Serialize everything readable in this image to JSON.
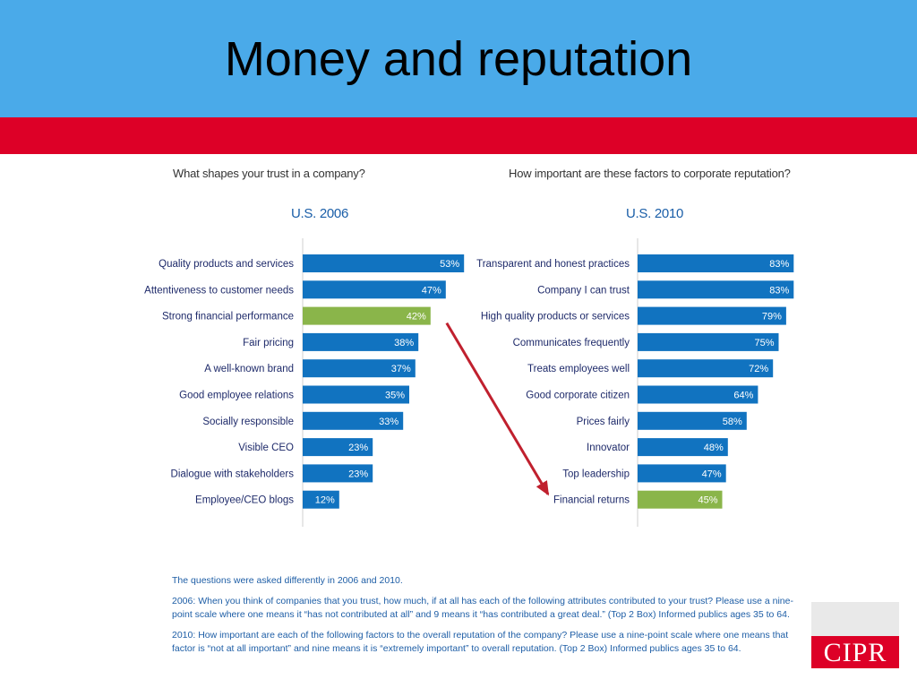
{
  "title": "Money and reputation",
  "left": {
    "question": "What shapes your trust in a company?",
    "year_label": "U.S. 2006"
  },
  "right": {
    "question": "How important are these factors to corporate reputation?",
    "year_label": "U.S. 2010"
  },
  "chart_data": [
    {
      "type": "bar",
      "orientation": "horizontal",
      "title": "U.S. 2006",
      "categories": [
        "Quality products and services",
        "Attentiveness to customer needs",
        "Strong financial performance",
        "Fair pricing",
        "A well-known brand",
        "Good employee relations",
        "Socially responsible",
        "Visible CEO",
        "Dialogue with stakeholders",
        "Employee/CEO blogs"
      ],
      "values": [
        53,
        47,
        42,
        38,
        37,
        35,
        33,
        23,
        23,
        12
      ],
      "labels": [
        "53%",
        "47%",
        "42%",
        "38%",
        "37%",
        "35%",
        "33%",
        "23%",
        "23%",
        "12%"
      ],
      "highlight_index": 2,
      "xlim": [
        0,
        100
      ]
    },
    {
      "type": "bar",
      "orientation": "horizontal",
      "title": "U.S. 2010",
      "categories": [
        "Transparent and honest practices",
        "Company I can trust",
        "High quality products or services",
        "Communicates frequently",
        "Treats employees well",
        "Good corporate citizen",
        "Prices fairly",
        "Innovator",
        "Top leadership",
        "Financial returns"
      ],
      "values": [
        83,
        83,
        79,
        75,
        72,
        64,
        58,
        48,
        47,
        45
      ],
      "labels": [
        "83%",
        "83%",
        "79%",
        "75%",
        "72%",
        "64%",
        "58%",
        "48%",
        "47%",
        "45%"
      ],
      "highlight_index": 9,
      "xlim": [
        0,
        100
      ]
    }
  ],
  "colors": {
    "bar": "#1173c0",
    "highlight": "#8ab54a",
    "arrow": "#c0202e",
    "header": "#4aaae9",
    "band": "#dd0027"
  },
  "notes": {
    "line1": "The questions were asked differently in 2006 and 2010.",
    "line2": "2006: When you think of companies that you trust, how much, if at all has each of the following attributes contributed to your trust? Please use a nine-point scale where one means it “has not contributed at all” and 9 means it “has contributed a great deal.” (Top 2 Box) Informed publics ages 35 to 64.",
    "line3": "2010: How important are each of the following factors to the overall reputation of the company? Please use a nine-point scale where one means that factor is “not at all important” and nine means it is “extremely important” to overall reputation. (Top 2 Box) Informed publics ages 35 to 64."
  },
  "logo": {
    "text": "CIPR"
  }
}
